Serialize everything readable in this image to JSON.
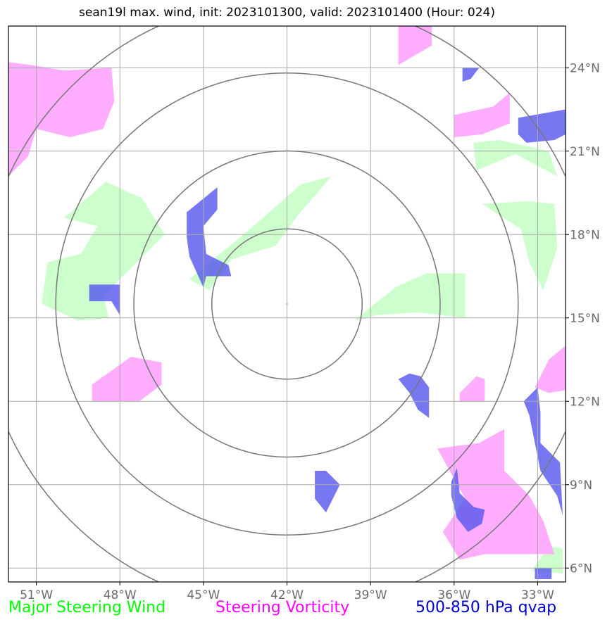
{
  "title": "sean19l max. wind, init: 2023101300, valid: 2023101400 (Hour: 024)",
  "map": {
    "lon_range": [
      -52,
      -32
    ],
    "lat_range": [
      5.5,
      25.5
    ],
    "center": {
      "lon": -42.0,
      "lat": 15.5
    },
    "range_rings_deg": [
      2.7,
      5.5,
      8.3,
      11.0
    ],
    "lon_ticks": [
      -51,
      -48,
      -45,
      -42,
      -39,
      -36,
      -33
    ],
    "lon_labels": [
      "51°W",
      "48°W",
      "45°W",
      "42°W",
      "39°W",
      "36°W",
      "33°W"
    ],
    "lat_ticks": [
      6,
      9,
      12,
      15,
      18,
      21,
      24
    ],
    "lat_labels": [
      "6°N",
      "9°N",
      "12°N",
      "15°N",
      "18°N",
      "21°N",
      "24°N"
    ],
    "grid": true,
    "colors": {
      "steering_wind": "#ccffcc",
      "steering_vorticity": "#ffaaff",
      "qvap": "#5555ee",
      "grid": "#aaaaaa",
      "rings": "#777777"
    },
    "fields": {
      "steering_wind": [
        [
          [
            -50,
            18.6
          ],
          [
            -48.5,
            19.9
          ],
          [
            -47.2,
            19.3
          ],
          [
            -46.4,
            18.0
          ],
          [
            -47.5,
            16.9
          ],
          [
            -48.6,
            15.8
          ],
          [
            -48.4,
            15.0
          ],
          [
            -49.5,
            14.9
          ],
          [
            -50.8,
            15.5
          ],
          [
            -50.6,
            17.0
          ],
          [
            -49.4,
            17.3
          ],
          [
            -48.8,
            18.3
          ]
        ],
        [
          [
            -45.5,
            16.4
          ],
          [
            -43.2,
            18.3
          ],
          [
            -41.5,
            19.8
          ],
          [
            -40.4,
            20.1
          ],
          [
            -41.6,
            18.7
          ],
          [
            -42.4,
            17.6
          ],
          [
            -44.0,
            17.1
          ],
          [
            -44.8,
            16.0
          ]
        ],
        [
          [
            -38.1,
            16.1
          ],
          [
            -37.0,
            16.6
          ],
          [
            -35.6,
            16.6
          ],
          [
            -35.6,
            15.0
          ],
          [
            -37.3,
            15.2
          ],
          [
            -38.8,
            15.1
          ],
          [
            -39.6,
            14.9
          ]
        ],
        [
          [
            -35.0,
            19.1
          ],
          [
            -33.3,
            19.2
          ],
          [
            -32.4,
            19.1
          ],
          [
            -32.3,
            17.5
          ],
          [
            -32.8,
            16.0
          ],
          [
            -33.3,
            17.0
          ],
          [
            -33.6,
            18.2
          ]
        ],
        [
          [
            -35.3,
            21.3
          ],
          [
            -34.4,
            21.4
          ],
          [
            -32.6,
            21.0
          ],
          [
            -32.3,
            20.1
          ],
          [
            -33.8,
            20.9
          ],
          [
            -35.2,
            20.3
          ]
        ],
        [
          [
            -32.6,
            6.8
          ],
          [
            -32.1,
            6.7
          ],
          [
            -32.1,
            5.8
          ],
          [
            -33.2,
            5.9
          ]
        ]
      ],
      "steering_vorticity": [
        [
          [
            -52,
            24.2
          ],
          [
            -51.2,
            24.1
          ],
          [
            -50.0,
            23.9
          ],
          [
            -48.3,
            24.0
          ],
          [
            -48.2,
            22.8
          ],
          [
            -48.6,
            21.8
          ],
          [
            -49.8,
            21.5
          ],
          [
            -51.0,
            21.8
          ],
          [
            -51.3,
            20.8
          ],
          [
            -52,
            20.1
          ]
        ],
        [
          [
            -38.0,
            25.5
          ],
          [
            -36.8,
            25.5
          ],
          [
            -36.8,
            24.8
          ],
          [
            -38.0,
            24.1
          ]
        ],
        [
          [
            -36.0,
            22.3
          ],
          [
            -34.6,
            22.6
          ],
          [
            -34.0,
            23.1
          ],
          [
            -34.0,
            22.0
          ],
          [
            -35.0,
            21.6
          ],
          [
            -36.0,
            21.5
          ]
        ],
        [
          [
            -49.0,
            12.6
          ],
          [
            -47.6,
            13.6
          ],
          [
            -46.5,
            13.4
          ],
          [
            -46.5,
            12.6
          ],
          [
            -47.3,
            12.0
          ],
          [
            -49.0,
            12.0
          ]
        ],
        [
          [
            -35.8,
            12.3
          ],
          [
            -35.2,
            12.9
          ],
          [
            -34.9,
            12.8
          ],
          [
            -34.9,
            12.0
          ],
          [
            -35.8,
            12.0
          ]
        ],
        [
          [
            -36.6,
            10.3
          ],
          [
            -35.1,
            10.5
          ],
          [
            -34.2,
            11.0
          ],
          [
            -34.2,
            9.5
          ],
          [
            -33.3,
            8.6
          ],
          [
            -32.8,
            7.7
          ],
          [
            -32.4,
            6.5
          ],
          [
            -34.9,
            6.5
          ],
          [
            -35.8,
            6.3
          ],
          [
            -36.4,
            7.3
          ],
          [
            -35.6,
            8.5
          ],
          [
            -36.0,
            9.2
          ]
        ],
        [
          [
            -32.6,
            12.3
          ],
          [
            -32.0,
            12.4
          ],
          [
            -32.0,
            14.0
          ],
          [
            -32.6,
            13.5
          ],
          [
            -33.1,
            12.5
          ]
        ]
      ],
      "qvap": [
        [
          [
            -45.6,
            18.8
          ],
          [
            -44.5,
            19.7
          ],
          [
            -44.5,
            18.9
          ],
          [
            -45.0,
            18.3
          ],
          [
            -44.9,
            17.3
          ],
          [
            -44.1,
            16.9
          ],
          [
            -44.0,
            16.5
          ],
          [
            -44.9,
            16.5
          ],
          [
            -45.0,
            16.1
          ],
          [
            -45.5,
            17.2
          ],
          [
            -45.6,
            17.9
          ]
        ],
        [
          [
            -49.1,
            16.2
          ],
          [
            -48.0,
            16.2
          ],
          [
            -48.0,
            15.1
          ],
          [
            -48.3,
            15.6
          ],
          [
            -49.1,
            15.6
          ]
        ],
        [
          [
            -37.6,
            13.0
          ],
          [
            -37.2,
            12.9
          ],
          [
            -36.9,
            12.5
          ],
          [
            -36.9,
            11.4
          ],
          [
            -37.3,
            11.7
          ],
          [
            -37.6,
            12.3
          ],
          [
            -38.0,
            12.8
          ]
        ],
        [
          [
            -33.5,
            12.0
          ],
          [
            -33.0,
            12.5
          ],
          [
            -32.9,
            11.6
          ],
          [
            -32.9,
            10.5
          ],
          [
            -32.2,
            9.8
          ],
          [
            -32.1,
            7.9
          ],
          [
            -32.3,
            8.6
          ],
          [
            -32.9,
            9.5
          ],
          [
            -33.3,
            11.5
          ]
        ],
        [
          [
            -35.9,
            9.6
          ],
          [
            -35.8,
            8.7
          ],
          [
            -35.3,
            8.2
          ],
          [
            -34.9,
            8.1
          ],
          [
            -35.0,
            7.6
          ],
          [
            -35.5,
            7.3
          ],
          [
            -35.9,
            7.8
          ],
          [
            -36.1,
            8.6
          ],
          [
            -36.1,
            9.1
          ]
        ],
        [
          [
            -33.7,
            22.2
          ],
          [
            -32.0,
            22.5
          ],
          [
            -32.0,
            21.6
          ],
          [
            -32.4,
            21.4
          ],
          [
            -33.4,
            21.3
          ],
          [
            -33.7,
            21.6
          ]
        ],
        [
          [
            -35.7,
            24.0
          ],
          [
            -35.1,
            24.0
          ],
          [
            -35.4,
            23.6
          ],
          [
            -35.7,
            23.5
          ]
        ],
        [
          [
            -40.6,
            9.5
          ],
          [
            -40.1,
            9.0
          ],
          [
            -40.6,
            8.0
          ],
          [
            -41.0,
            8.5
          ],
          [
            -41.0,
            9.5
          ]
        ],
        [
          [
            -33.1,
            6.0
          ],
          [
            -32.5,
            6.0
          ],
          [
            -32.5,
            5.6
          ],
          [
            -33.1,
            5.6
          ]
        ]
      ]
    }
  },
  "legend": {
    "wind_label": "Major Steering Wind",
    "vorticity_label": "Steering Vorticity",
    "qvap_label": "500-850 hPa qvap",
    "wind_color": "#00ff00",
    "vorticity_color": "#ff00ff",
    "qvap_color": "#0000cc"
  }
}
